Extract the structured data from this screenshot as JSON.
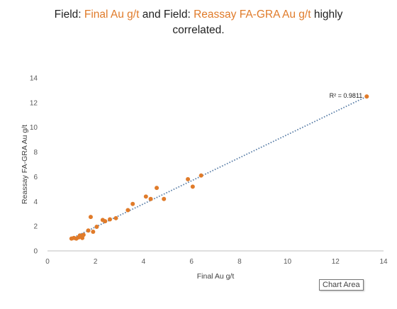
{
  "title": {
    "p1": "Field: ",
    "f1": "Final Au g/t",
    "p2": " and Field: ",
    "f2": "Reassay FA-GRA Au g/t",
    "p3": " highly",
    "line2": "correlated."
  },
  "tooltip": "Chart Area",
  "colors": {
    "points": "#e07b2a",
    "trendline": "#5b7fa8",
    "title_highlight": "#e07b2a"
  },
  "chart_data": {
    "type": "scatter",
    "xlabel": "Final Au g/t",
    "ylabel": "Reassay FA-GRA Au g/t",
    "xlim": [
      0,
      14
    ],
    "ylim": [
      0,
      14
    ],
    "xticks": [
      0,
      2,
      4,
      6,
      8,
      10,
      12,
      14
    ],
    "yticks": [
      0,
      2,
      4,
      6,
      8,
      10,
      12,
      14
    ],
    "grid": false,
    "annotation": "R² = 0.9811",
    "trendline": {
      "type": "linear",
      "from": [
        1.0,
        1.0
      ],
      "to": [
        13.3,
        12.5
      ]
    },
    "series": [
      {
        "points": [
          [
            1.0,
            1.0
          ],
          [
            1.1,
            1.05
          ],
          [
            1.2,
            1.0
          ],
          [
            1.3,
            1.1
          ],
          [
            1.35,
            1.25
          ],
          [
            1.45,
            1.05
          ],
          [
            1.5,
            1.3
          ],
          [
            1.7,
            1.65
          ],
          [
            1.8,
            2.75
          ],
          [
            1.9,
            1.55
          ],
          [
            2.05,
            1.95
          ],
          [
            2.3,
            2.5
          ],
          [
            2.4,
            2.4
          ],
          [
            2.6,
            2.55
          ],
          [
            2.85,
            2.65
          ],
          [
            3.35,
            3.3
          ],
          [
            3.55,
            3.8
          ],
          [
            4.1,
            4.4
          ],
          [
            4.3,
            4.2
          ],
          [
            4.55,
            5.1
          ],
          [
            4.85,
            4.2
          ],
          [
            5.85,
            5.8
          ],
          [
            6.05,
            5.2
          ],
          [
            6.4,
            6.1
          ],
          [
            13.3,
            12.5
          ]
        ]
      }
    ]
  }
}
